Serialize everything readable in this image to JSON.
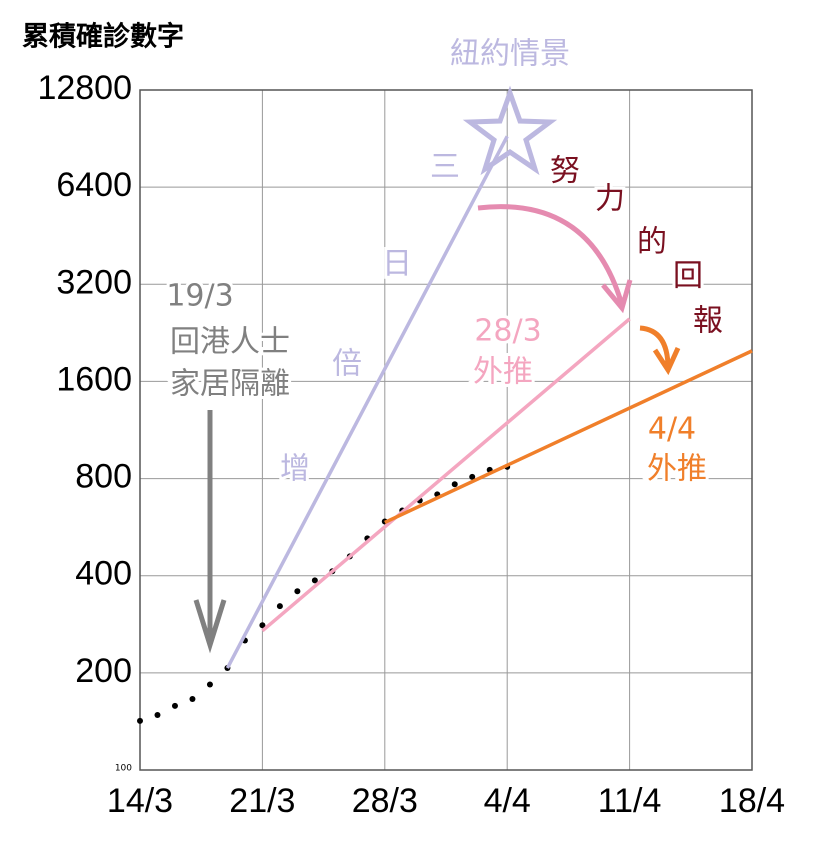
{
  "chart_data": {
    "type": "line",
    "title": "累積確診數字",
    "log_scale": true,
    "grid": true,
    "xlim": [
      0,
      35
    ],
    "xticks": [
      {
        "value": 0,
        "label": "14/3"
      },
      {
        "value": 7,
        "label": "21/3"
      },
      {
        "value": 14,
        "label": "28/3"
      },
      {
        "value": 21,
        "label": "4/4"
      },
      {
        "value": 28,
        "label": "11/4"
      },
      {
        "value": 35,
        "label": "18/4"
      }
    ],
    "ylim": [
      100,
      12800
    ],
    "yticks": [
      100,
      200,
      400,
      800,
      1600,
      3200,
      6400,
      12800
    ],
    "series": [
      {
        "style": "dots",
        "color": "#000000",
        "x": [
          0,
          1,
          2,
          3,
          4,
          5,
          6,
          7,
          8,
          9,
          10,
          11,
          12,
          13,
          14,
          15,
          16,
          17,
          18,
          19,
          20,
          21
        ],
        "values": [
          142,
          148,
          158,
          166,
          184,
          207,
          252,
          281,
          322,
          358,
          387,
          413,
          459,
          522,
          589,
          637,
          684,
          715,
          768,
          810,
          851,
          870
        ]
      },
      {
        "style": "line",
        "color": "#bcb8e0",
        "x": [
          5,
          21
        ],
        "values": [
          207,
          9200
        ]
      },
      {
        "style": "line",
        "color": "#f4a6c0",
        "x": [
          7,
          28
        ],
        "values": [
          270,
          2500
        ]
      },
      {
        "style": "line",
        "color": "#f07f2a",
        "x": [
          14,
          35
        ],
        "values": [
          585,
          1990
        ]
      }
    ],
    "annotations": [
      {
        "text": "紐約情景",
        "color": "#bcb8e0"
      },
      {
        "text": "三",
        "color": "#bcb8e0"
      },
      {
        "text": "日",
        "color": "#bcb8e0"
      },
      {
        "text": "倍",
        "color": "#bcb8e0"
      },
      {
        "text": "增",
        "color": "#bcb8e0"
      },
      {
        "text": "19/3",
        "color": "#808080"
      },
      {
        "text": "回港人士",
        "color": "#808080"
      },
      {
        "text": "家居隔離",
        "color": "#808080"
      },
      {
        "text": "努",
        "color": "#7a1020"
      },
      {
        "text": "力",
        "color": "#7a1020"
      },
      {
        "text": "的",
        "color": "#7a1020"
      },
      {
        "text": "回",
        "color": "#7a1020"
      },
      {
        "text": "報",
        "color": "#7a1020"
      },
      {
        "text": "28/3",
        "color": "#f4a6c0"
      },
      {
        "text": "外推",
        "color": "#f4a6c0"
      },
      {
        "text": "4/4",
        "color": "#f07f2a"
      },
      {
        "text": "外推",
        "color": "#f07f2a"
      }
    ]
  }
}
